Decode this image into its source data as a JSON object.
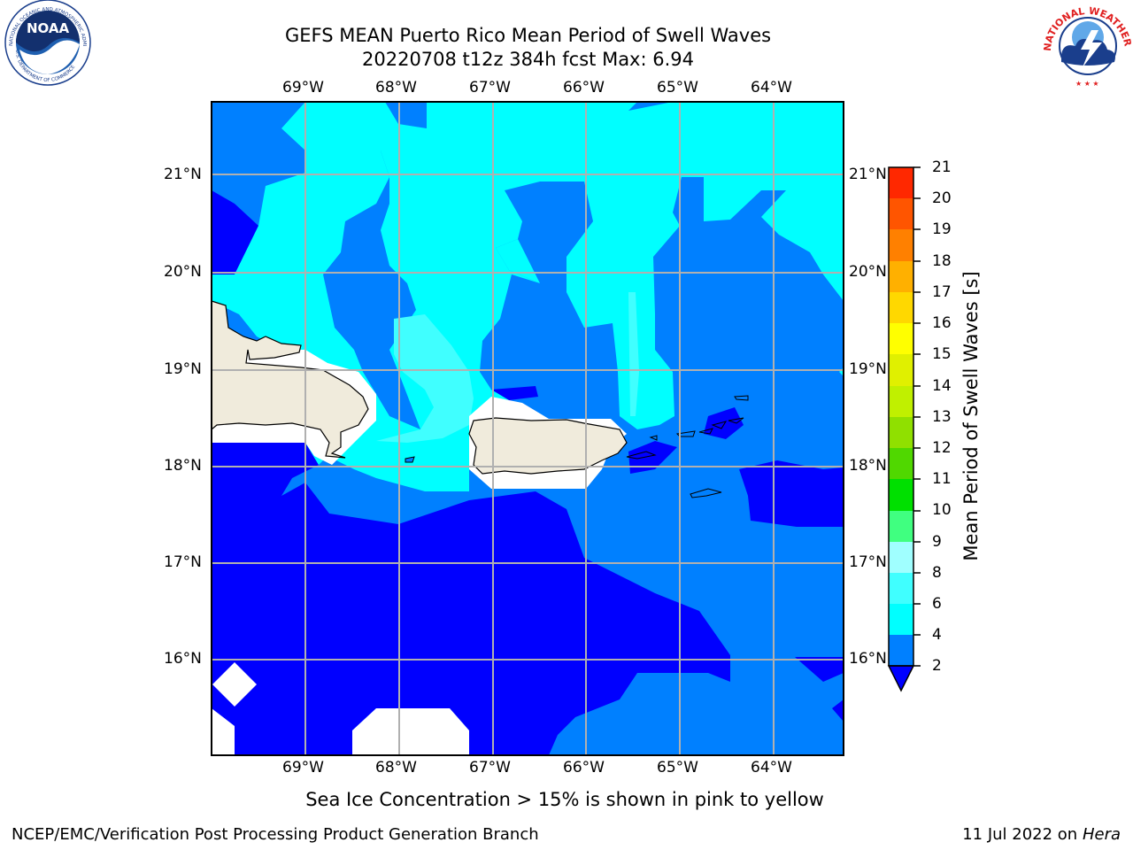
{
  "header": {
    "title_line1": "GEFS MEAN Puerto Rico Mean Period of Swell Waves",
    "title_line2": "20220708 t12z 384h fcst   Max: 6.94"
  },
  "logos": {
    "left": "noaa-logo",
    "right": "national-weather-service-logo",
    "left_text": [
      "NOAA",
      "NATIONAL OCEANIC AND ATMOSPHERIC ADMINISTRATION",
      "U.S. DEPARTMENT OF COMMERCE"
    ],
    "right_text": "NATIONAL WEATHER SERVICE"
  },
  "map": {
    "lon_labels": [
      "69°W",
      "68°W",
      "67°W",
      "66°W",
      "65°W",
      "64°W"
    ],
    "lat_labels": [
      "21°N",
      "20°N",
      "19°N",
      "18°N",
      "17°N",
      "16°N"
    ],
    "colors": {
      "ocean_2_4": "#0080ff",
      "ocean_below_2": "#0000ff",
      "ocean_4_6": "#00ffff",
      "ocean_6_8": "#40ffff",
      "land": "#f0ebdc",
      "grid": "#b0b0b0"
    }
  },
  "colorbar": {
    "label": "Mean Period of Swell Waves [s]",
    "ticks": [
      "2",
      "4",
      "6",
      "8",
      "9",
      "10",
      "11",
      "12",
      "13",
      "14",
      "15",
      "16",
      "17",
      "18",
      "19",
      "20",
      "21"
    ],
    "colors": [
      "#0080ff",
      "#00ffff",
      "#40ffff",
      "#a0ffff",
      "#40ff80",
      "#00e000",
      "#50d800",
      "#90e000",
      "#c0f000",
      "#e0f000",
      "#ffff00",
      "#ffd800",
      "#ffb000",
      "#ff8000",
      "#ff5500",
      "#ff2800",
      "#ff0000"
    ],
    "extend_color": "#0000ff"
  },
  "notes": {
    "sea_ice": "Sea Ice Concentration > 15% is shown in pink to yellow"
  },
  "footer": {
    "left": "NCEP/EMC/Verification Post Processing Product Generation Branch",
    "date": "11 Jul 2022 on ",
    "machine": "Hera"
  }
}
